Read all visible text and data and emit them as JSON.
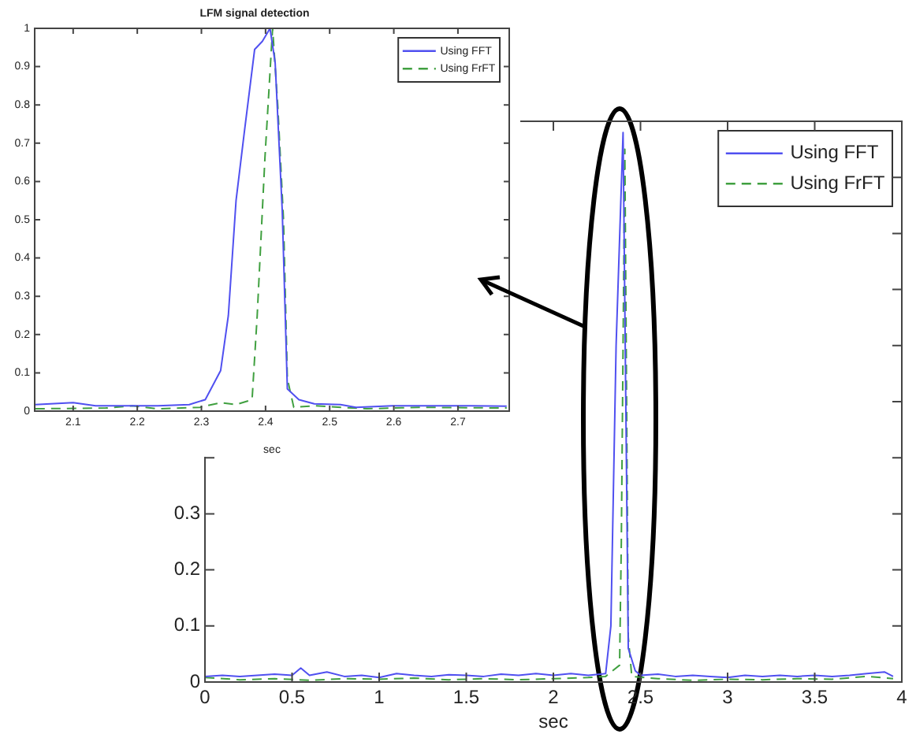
{
  "chart_data": [
    {
      "type": "line",
      "title": "LFM signal detection",
      "xlabel": "sec",
      "xlim": [
        2.04,
        2.78
      ],
      "xticks": [
        2.1,
        2.2,
        2.3,
        2.4,
        2.5,
        2.6,
        2.7
      ],
      "ylim": [
        0,
        1
      ],
      "yticks": [
        0,
        0.1,
        0.2,
        0.3,
        0.4,
        0.5,
        0.6,
        0.7,
        0.8,
        0.9,
        1
      ],
      "grid": false,
      "legend": "top right",
      "marker": "none",
      "series": [
        {
          "name": "Using FFT",
          "color": "#5050f0",
          "line_style": "solid",
          "x": [
            2.041,
            2.1,
            2.135,
            2.232,
            2.281,
            2.306,
            2.33,
            2.342,
            2.354,
            2.367,
            2.383,
            2.395,
            2.407,
            2.415,
            2.426,
            2.434,
            2.452,
            2.476,
            2.517,
            2.541,
            2.598,
            2.68,
            2.72,
            2.776
          ],
          "values": [
            0.017,
            0.022,
            0.014,
            0.014,
            0.017,
            0.03,
            0.106,
            0.25,
            0.55,
            0.73,
            0.945,
            0.966,
            1.0,
            0.91,
            0.525,
            0.058,
            0.03,
            0.019,
            0.017,
            0.01,
            0.014,
            0.014,
            0.014,
            0.013
          ]
        },
        {
          "name": "Using FrFT",
          "color": "#40a040",
          "line_style": "dashed",
          "x": [
            2.041,
            2.151,
            2.192,
            2.232,
            2.298,
            2.33,
            2.354,
            2.379,
            2.387,
            2.399,
            2.411,
            2.419,
            2.428,
            2.434,
            2.444,
            2.476,
            2.558,
            2.639,
            2.776
          ],
          "values": [
            0.006,
            0.008,
            0.014,
            0.006,
            0.01,
            0.022,
            0.017,
            0.03,
            0.25,
            0.66,
            1.0,
            0.8,
            0.5,
            0.085,
            0.01,
            0.014,
            0.006,
            0.01,
            0.008
          ]
        }
      ]
    },
    {
      "type": "line",
      "xlabel": "sec",
      "xlim": [
        0,
        4
      ],
      "xticks": [
        0,
        0.5,
        1,
        1.5,
        2,
        2.5,
        3,
        3.5,
        4
      ],
      "ylim": [
        0,
        1
      ],
      "yticks": [
        0,
        0.1,
        0.2,
        0.3,
        {
          "value": 0.4,
          "label": null
        },
        {
          "value": 0.5,
          "label": null
        },
        {
          "value": 0.6,
          "label": null
        },
        {
          "value": 0.7,
          "label": null
        },
        {
          "value": 0.8,
          "label": null
        },
        {
          "value": 0.9,
          "label": null
        },
        {
          "value": 1,
          "label": null
        }
      ],
      "grid": false,
      "legend": "top right",
      "marker": "none",
      "series": [
        {
          "name": "Using FFT",
          "color": "#5050f0",
          "line_style": "solid",
          "x": [
            0,
            0.1,
            0.2,
            0.3,
            0.4,
            0.5,
            0.55,
            0.6,
            0.7,
            0.8,
            0.9,
            1.0,
            1.1,
            1.2,
            1.3,
            1.4,
            1.5,
            1.6,
            1.7,
            1.8,
            1.9,
            2.0,
            2.1,
            2.2,
            2.3,
            2.33,
            2.36,
            2.4,
            2.43,
            2.47,
            2.5,
            2.6,
            2.7,
            2.8,
            2.9,
            3.0,
            3.1,
            3.2,
            3.3,
            3.4,
            3.5,
            3.6,
            3.7,
            3.8,
            3.9,
            3.95
          ],
          "values": [
            0.01,
            0.012,
            0.01,
            0.012,
            0.014,
            0.012,
            0.025,
            0.012,
            0.018,
            0.01,
            0.012,
            0.008,
            0.015,
            0.012,
            0.01,
            0.013,
            0.012,
            0.01,
            0.014,
            0.012,
            0.015,
            0.012,
            0.015,
            0.012,
            0.015,
            0.1,
            0.6,
            0.98,
            0.06,
            0.02,
            0.012,
            0.014,
            0.01,
            0.012,
            0.01,
            0.008,
            0.012,
            0.01,
            0.012,
            0.01,
            0.012,
            0.01,
            0.012,
            0.015,
            0.018,
            0.01
          ]
        },
        {
          "name": "Using FrFT",
          "color": "#40a040",
          "line_style": "dashed",
          "x": [
            0,
            0.2,
            0.4,
            0.6,
            0.8,
            1.0,
            1.2,
            1.4,
            1.6,
            1.8,
            2.0,
            2.2,
            2.3,
            2.38,
            2.39,
            2.41,
            2.43,
            2.45,
            2.6,
            2.8,
            3.0,
            3.2,
            3.4,
            3.6,
            3.8,
            3.95
          ],
          "values": [
            0.008,
            0.004,
            0.006,
            0.003,
            0.006,
            0.005,
            0.007,
            0.004,
            0.006,
            0.004,
            0.006,
            0.008,
            0.01,
            0.03,
            0.25,
            0.95,
            0.08,
            0.01,
            0.006,
            0.003,
            0.005,
            0.004,
            0.006,
            0.005,
            0.01,
            0.006
          ]
        }
      ]
    }
  ]
}
